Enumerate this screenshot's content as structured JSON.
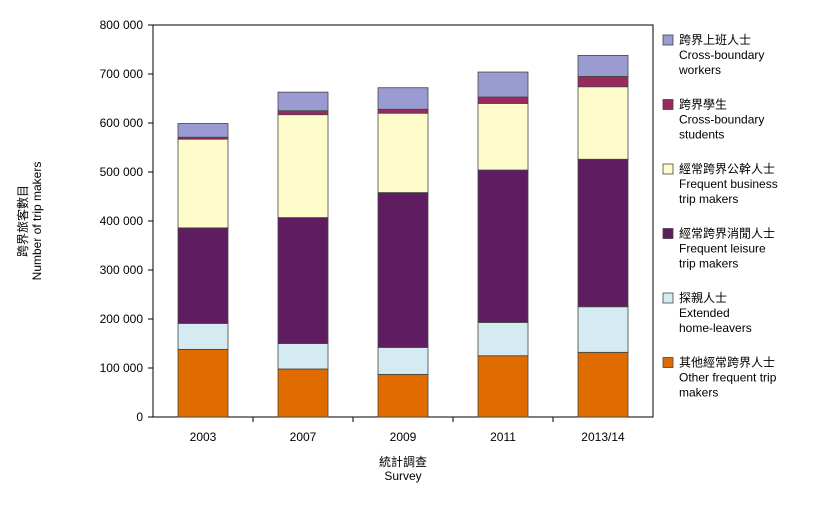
{
  "chart_data": {
    "type": "bar",
    "stacked": true,
    "categories": [
      "2003",
      "2007",
      "2009",
      "2011",
      "2013/14"
    ],
    "ylim": [
      0,
      800000
    ],
    "yticks": [
      0,
      100000,
      200000,
      300000,
      400000,
      500000,
      600000,
      700000,
      800000
    ],
    "ytick_labels": [
      "0",
      "100 000",
      "200 000",
      "300 000",
      "400 000",
      "500 000",
      "600 000",
      "700 000",
      "800 000"
    ],
    "ylabel_lines": [
      "跨界旅客數目",
      "Number of trip makers"
    ],
    "xlabel_lines": [
      "統計調查",
      "Survey"
    ],
    "grid": false,
    "legend_position": "right",
    "series": [
      {
        "name_lines": [
          "其他經常跨界人士",
          "Other frequent trip",
          "makers"
        ],
        "color": "#E06C00",
        "values": [
          138000,
          98000,
          87000,
          125000,
          132000
        ]
      },
      {
        "name_lines": [
          "探親人士",
          "Extended",
          "home-leavers"
        ],
        "color": "#D3EBF1",
        "values": [
          53000,
          52000,
          55000,
          68000,
          93000
        ]
      },
      {
        "name_lines": [
          "經常跨界消閒人士",
          "Frequent leisure",
          "trip makers"
        ],
        "color": "#5F1C61",
        "values": [
          195000,
          257000,
          316000,
          311000,
          301000
        ]
      },
      {
        "name_lines": [
          "經常跨界公幹人士",
          "Frequent business",
          "trip makers"
        ],
        "color": "#FFFCCC",
        "values": [
          181000,
          210000,
          162000,
          136000,
          148000
        ]
      },
      {
        "name_lines": [
          "跨界學生",
          "Cross-boundary",
          "students"
        ],
        "color": "#9A2A5E",
        "values": [
          4000,
          8000,
          8000,
          13000,
          21000
        ]
      },
      {
        "name_lines": [
          "跨界上班人士",
          "Cross-boundary",
          "workers"
        ],
        "color": "#9A9BD0",
        "values": [
          28000,
          38000,
          44000,
          51000,
          43000
        ]
      }
    ]
  }
}
